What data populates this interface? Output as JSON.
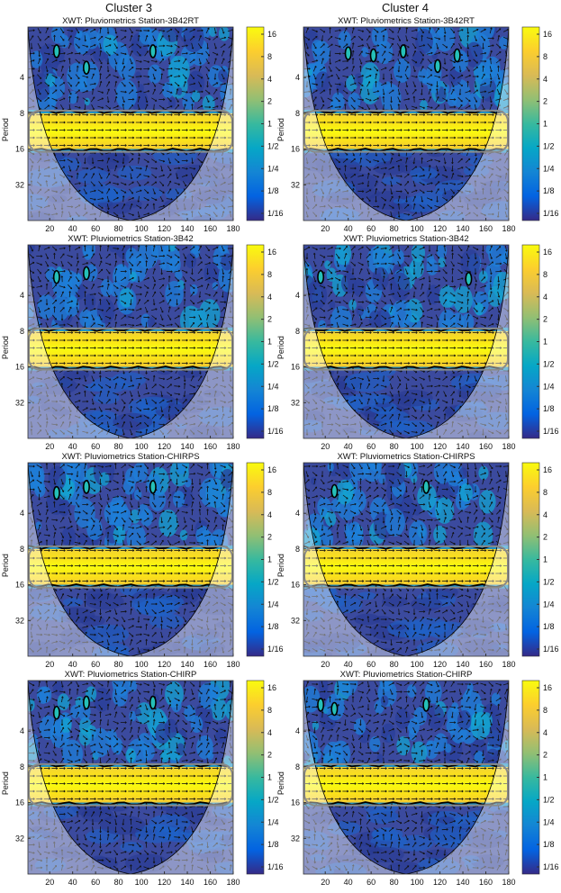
{
  "figure": {
    "columns": [
      "Cluster 3",
      "Cluster 4"
    ]
  },
  "chart_data": [
    {
      "type": "heatmap",
      "cluster": "Cluster 3",
      "title": "XWT: Pluviometrics Station-3B42RT",
      "ylabel": "Period",
      "xticks": [
        20,
        40,
        60,
        80,
        100,
        120,
        140,
        160,
        180
      ],
      "yticks": [
        "4",
        "8",
        "16",
        "32"
      ],
      "colorbar_ticks": [
        "16",
        "8",
        "4",
        "2",
        "1",
        "1/2",
        "1/4",
        "1/8",
        "1/16"
      ],
      "xlim": [
        1,
        180
      ],
      "dominant_band_period": [
        8,
        16
      ],
      "small_islands": [
        {
          "x": 26,
          "p": 2.4
        },
        {
          "x": 52,
          "p": 3.3
        },
        {
          "x": 110,
          "p": 2.4
        }
      ]
    },
    {
      "type": "heatmap",
      "cluster": "Cluster 4",
      "title": "XWT: Pluviometrics Station-3B42RT",
      "ylabel": "Period",
      "xticks": [
        20,
        40,
        60,
        80,
        100,
        120,
        140,
        160,
        180
      ],
      "yticks": [
        "4",
        "8",
        "16",
        "32"
      ],
      "colorbar_ticks": [
        "16",
        "8",
        "4",
        "2",
        "1",
        "1/2",
        "1/4",
        "1/8",
        "1/16"
      ],
      "xlim": [
        1,
        180
      ],
      "dominant_band_period": [
        8,
        16
      ],
      "small_islands": [
        {
          "x": 40,
          "p": 2.5
        },
        {
          "x": 62,
          "p": 2.6
        },
        {
          "x": 88,
          "p": 2.4
        },
        {
          "x": 118,
          "p": 3.2
        },
        {
          "x": 135,
          "p": 2.6
        }
      ]
    },
    {
      "type": "heatmap",
      "cluster": "Cluster 3",
      "title": "XWT: Pluviometrics Station-3B42",
      "ylabel": "Period",
      "xticks": [
        20,
        40,
        60,
        80,
        100,
        120,
        140,
        160,
        180
      ],
      "yticks": [
        "4",
        "8",
        "16",
        "32"
      ],
      "colorbar_ticks": [
        "16",
        "8",
        "4",
        "2",
        "1",
        "1/2",
        "1/4",
        "1/8",
        "1/16"
      ],
      "xlim": [
        1,
        180
      ],
      "dominant_band_period": [
        8,
        16
      ],
      "small_islands": [
        {
          "x": 26,
          "p": 2.8
        },
        {
          "x": 52,
          "p": 2.6
        }
      ]
    },
    {
      "type": "heatmap",
      "cluster": "Cluster 4",
      "title": "XWT: Pluviometrics Station-3B42",
      "ylabel": "Period",
      "xticks": [
        20,
        40,
        60,
        80,
        100,
        120,
        140,
        160,
        180
      ],
      "yticks": [
        "4",
        "8",
        "16",
        "32"
      ],
      "colorbar_ticks": [
        "16",
        "8",
        "4",
        "2",
        "1",
        "1/2",
        "1/4",
        "1/8",
        "1/16"
      ],
      "xlim": [
        1,
        180
      ],
      "dominant_band_period": [
        8,
        16
      ],
      "small_islands": [
        {
          "x": 16,
          "p": 2.8
        },
        {
          "x": 145,
          "p": 2.9
        }
      ]
    },
    {
      "type": "heatmap",
      "cluster": "Cluster 3",
      "title": "XWT: Pluviometrics Station-CHIRPS",
      "ylabel": "Period",
      "xticks": [
        20,
        40,
        60,
        80,
        100,
        120,
        140,
        160,
        180
      ],
      "yticks": [
        "4",
        "8",
        "16",
        "32"
      ],
      "colorbar_ticks": [
        "16",
        "8",
        "4",
        "2",
        "1",
        "1/2",
        "1/4",
        "1/8",
        "1/16"
      ],
      "xlim": [
        1,
        180
      ],
      "dominant_band_period": [
        8,
        16
      ],
      "small_islands": [
        {
          "x": 26,
          "p": 2.7
        },
        {
          "x": 52,
          "p": 2.4
        },
        {
          "x": 110,
          "p": 2.4
        }
      ]
    },
    {
      "type": "heatmap",
      "cluster": "Cluster 4",
      "title": "XWT: Pluviometrics Station-CHIRPS",
      "ylabel": "Period",
      "xticks": [
        20,
        40,
        60,
        80,
        100,
        120,
        140,
        160,
        180
      ],
      "yticks": [
        "4",
        "8",
        "16",
        "32"
      ],
      "colorbar_ticks": [
        "16",
        "8",
        "4",
        "2",
        "1",
        "1/2",
        "1/4",
        "1/8",
        "1/16"
      ],
      "xlim": [
        1,
        180
      ],
      "dominant_band_period": [
        8,
        16
      ],
      "small_islands": [
        {
          "x": 28,
          "p": 2.6
        },
        {
          "x": 108,
          "p": 2.4
        }
      ]
    },
    {
      "type": "heatmap",
      "cluster": "Cluster 3",
      "title": "XWT: Pluviometrics Station-CHIRP",
      "ylabel": "Period",
      "xticks": [
        20,
        40,
        60,
        80,
        100,
        120,
        140,
        160,
        180
      ],
      "yticks": [
        "4",
        "8",
        "16",
        "32"
      ],
      "colorbar_ticks": [
        "16",
        "8",
        "4",
        "2",
        "1",
        "1/2",
        "1/4",
        "1/8",
        "1/16"
      ],
      "xlim": [
        1,
        180
      ],
      "dominant_band_period": [
        8,
        16
      ],
      "small_islands": [
        {
          "x": 26,
          "p": 2.8
        },
        {
          "x": 52,
          "p": 2.3
        },
        {
          "x": 110,
          "p": 2.3
        }
      ]
    },
    {
      "type": "heatmap",
      "cluster": "Cluster 4",
      "title": "XWT: Pluviometrics Station-CHIRP",
      "ylabel": "Period",
      "xticks": [
        20,
        40,
        60,
        80,
        100,
        120,
        140,
        160,
        180
      ],
      "yticks": [
        "4",
        "8",
        "16",
        "32"
      ],
      "colorbar_ticks": [
        "16",
        "8",
        "4",
        "2",
        "1",
        "1/2",
        "1/4",
        "1/8",
        "1/16"
      ],
      "xlim": [
        1,
        180
      ],
      "dominant_band_period": [
        8,
        16
      ],
      "small_islands": [
        {
          "x": 16,
          "p": 2.4
        },
        {
          "x": 28,
          "p": 2.6
        },
        {
          "x": 108,
          "p": 2.4
        }
      ]
    }
  ]
}
